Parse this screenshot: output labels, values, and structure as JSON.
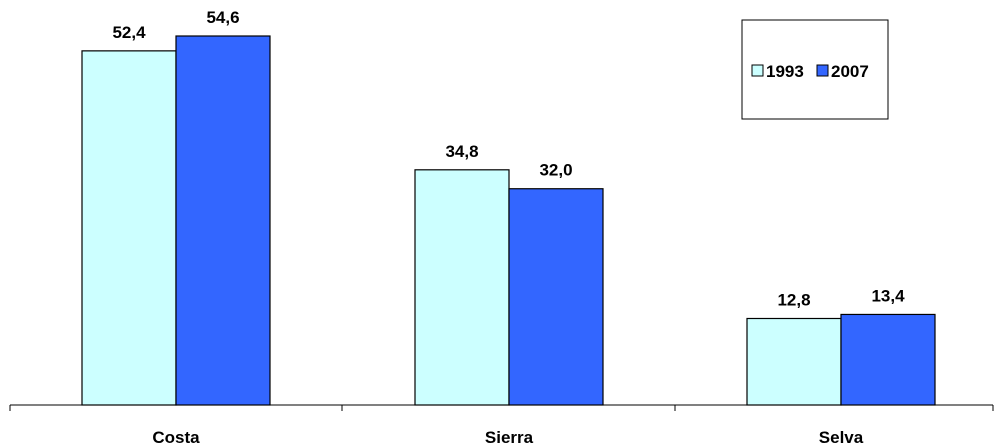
{
  "chart_data": {
    "type": "bar",
    "title": "",
    "xlabel": "",
    "ylabel": "",
    "categories": [
      "Costa",
      "Sierra",
      "Selva"
    ],
    "series": [
      {
        "name": "1993",
        "values": [
          52.4,
          34.8,
          12.8
        ],
        "labels": [
          "52,4",
          "34,8",
          "12,8"
        ],
        "color": "#CCFFFF"
      },
      {
        "name": "2007",
        "values": [
          54.6,
          32.0,
          13.4
        ],
        "labels": [
          "54,6",
          "32,0",
          "13,4"
        ],
        "color": "#3366FF"
      }
    ],
    "ylim": [
      0,
      60
    ],
    "grid": false,
    "legend_position": "top-right",
    "value_labels": true
  }
}
